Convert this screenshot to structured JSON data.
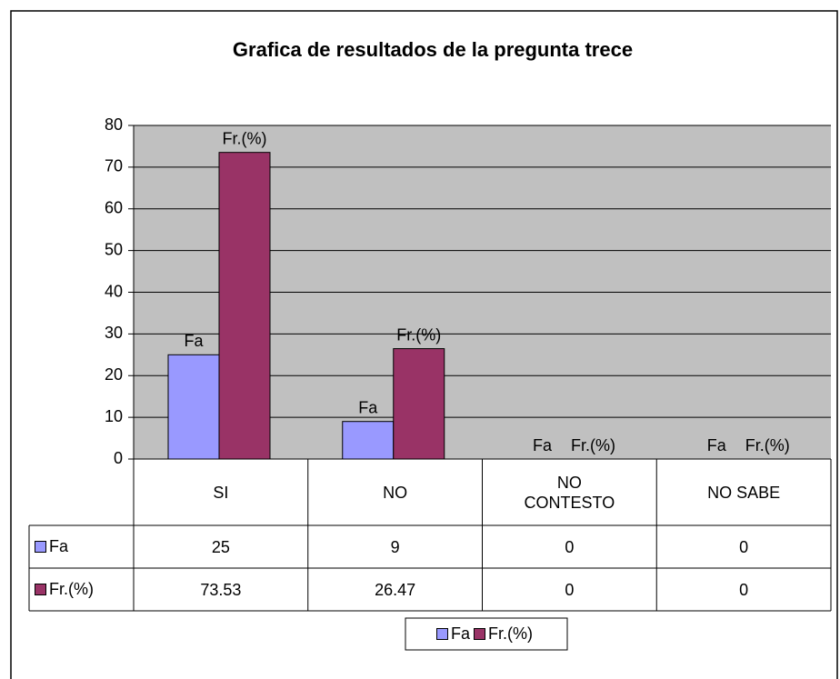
{
  "chart_data": {
    "type": "bar",
    "title": "Grafica de resultados de la pregunta trece",
    "categories": [
      "SI",
      "NO",
      "NO CONTESTO",
      "NO SABE"
    ],
    "series": [
      {
        "name": "Fa",
        "color": "#9999ff",
        "values": [
          25,
          9,
          0,
          0
        ]
      },
      {
        "name": "Fr.(%)",
        "color": "#993366",
        "values": [
          73.53,
          26.47,
          0,
          0
        ]
      }
    ],
    "ylim": [
      0,
      80
    ],
    "yticks": [
      0,
      10,
      20,
      30,
      40,
      50,
      60,
      70,
      80
    ],
    "grid": true,
    "plot_background": "#c0c0c0",
    "legend": "bottom",
    "data_table": true
  }
}
